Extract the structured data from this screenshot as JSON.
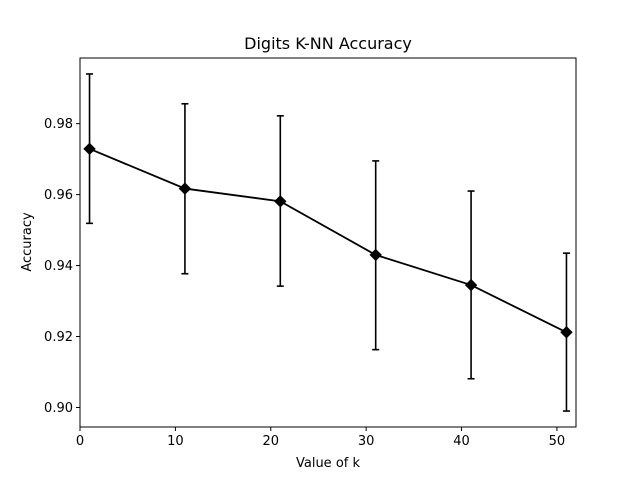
{
  "chart_data": {
    "type": "line",
    "title": "Digits K-NN Accuracy",
    "xlabel": "Value of k",
    "ylabel": "Accuracy",
    "xlim": [
      0,
      52
    ],
    "ylim": [
      0.8945,
      0.9985
    ],
    "xticks": [
      0,
      10,
      20,
      30,
      40,
      50
    ],
    "xtick_labels": [
      "0",
      "10",
      "20",
      "30",
      "40",
      "50"
    ],
    "yticks": [
      0.9,
      0.92,
      0.94,
      0.96,
      0.98
    ],
    "ytick_labels": [
      "0.90",
      "0.92",
      "0.94",
      "0.96",
      "0.98"
    ],
    "grid": false,
    "line_color": "#000000",
    "marker": "diamond",
    "series": [
      {
        "x": [
          1,
          11,
          21,
          31,
          41,
          51
        ],
        "y": [
          0.9729,
          0.9617,
          0.9581,
          0.943,
          0.9345,
          0.9212
        ],
        "yerr_low": [
          0.9519,
          0.9377,
          0.9342,
          0.9163,
          0.9081,
          0.899
        ],
        "yerr_high": [
          0.994,
          0.9856,
          0.9822,
          0.9695,
          0.961,
          0.9435
        ]
      }
    ]
  }
}
